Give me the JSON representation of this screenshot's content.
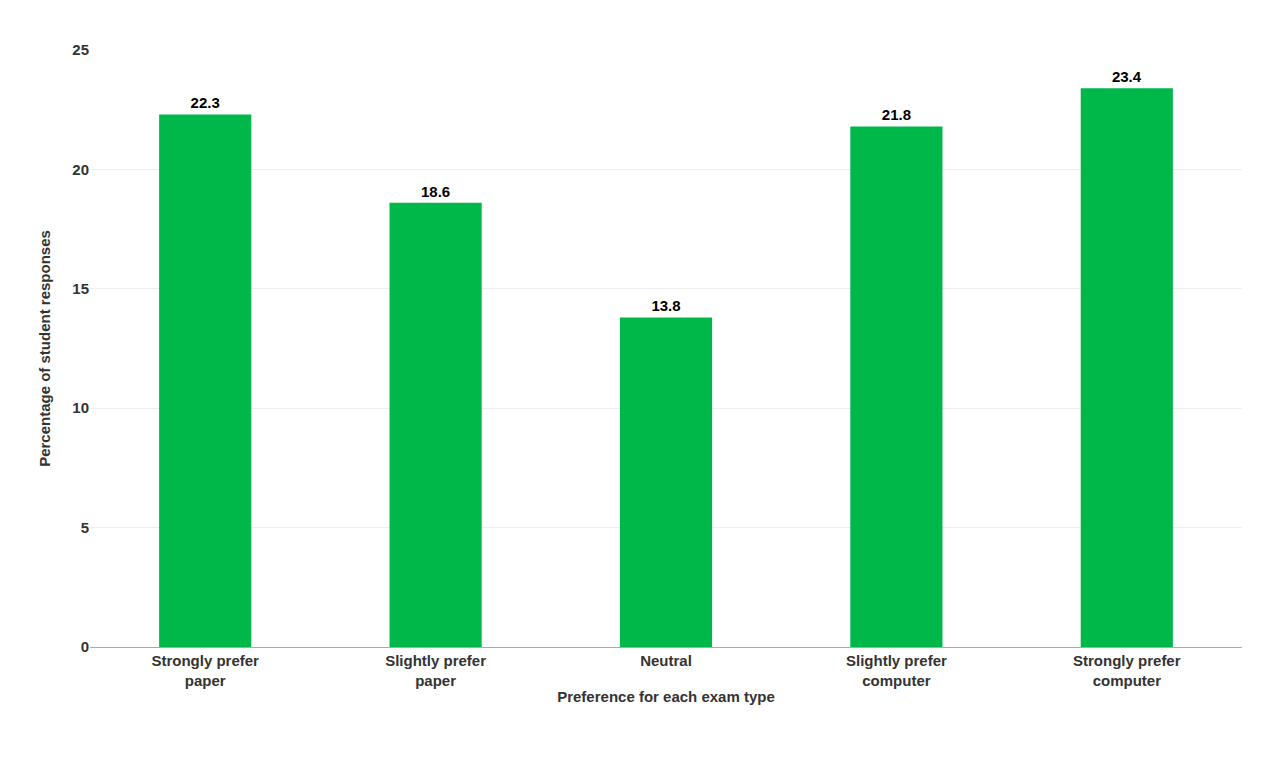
{
  "chart_data": {
    "type": "bar",
    "categories": [
      "Strongly prefer\npaper",
      "Slightly prefer\npaper",
      "Neutral",
      "Slightly prefer\ncomputer",
      "Strongly prefer\ncomputer"
    ],
    "values": [
      22.3,
      18.6,
      13.8,
      21.8,
      23.4
    ],
    "color": "#00B84A",
    "xlabel": "Preference for each exam type",
    "ylabel": "Percentage of student responses",
    "ylim": [
      0,
      25
    ],
    "yticks": [
      0,
      5,
      10,
      15,
      20,
      25
    ],
    "grid": true,
    "data_labels": true
  }
}
